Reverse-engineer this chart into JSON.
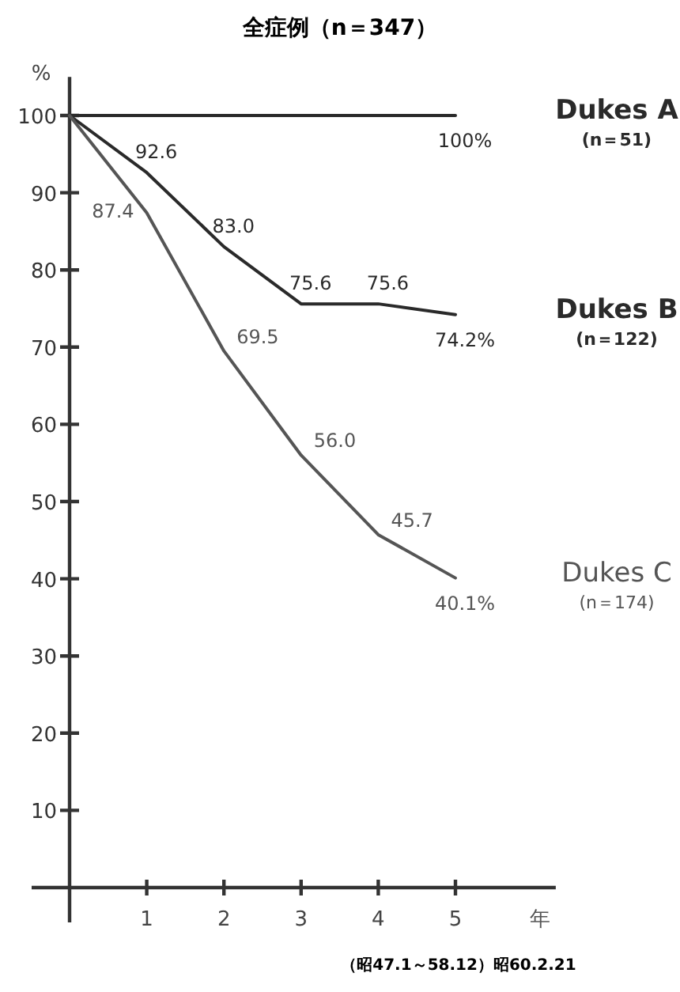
{
  "chart_data": {
    "type": "line",
    "title": "全症例（n＝347）",
    "xlabel": "年",
    "ylabel": "%",
    "x": [
      0,
      1,
      2,
      3,
      4,
      5
    ],
    "series": [
      {
        "name": "Dukes A",
        "color": "#2a2a2a",
        "values": [
          100,
          100,
          100,
          100,
          100,
          100
        ],
        "value_labels": [
          null,
          null,
          null,
          null,
          null,
          "100%"
        ]
      },
      {
        "name": "Dukes B",
        "color": "#2a2a2a",
        "values": [
          100,
          92.6,
          83.0,
          75.6,
          75.6,
          74.2
        ],
        "value_labels": [
          null,
          "92.6",
          "83.0",
          "75.6",
          "75.6",
          "74.2%"
        ]
      },
      {
        "name": "Dukes C",
        "color": "#555555",
        "values": [
          100,
          87.4,
          69.5,
          56.0,
          45.7,
          40.1
        ],
        "value_labels": [
          null,
          "87.4",
          "69.5",
          "56.0",
          "45.7",
          "40.1%"
        ]
      }
    ],
    "annotations": [
      "(n＝51)",
      "(n＝122)",
      "(n＝174)",
      "（昭47.1～58.12）昭60.2.21"
    ],
    "xlim": [
      0,
      6.3
    ],
    "ylim": [
      0,
      105
    ],
    "xticks": [
      1,
      2,
      3,
      4,
      5
    ],
    "yticks": [
      10,
      20,
      30,
      40,
      50,
      60,
      70,
      80,
      90,
      100
    ],
    "grid": false,
    "marker": "none",
    "line_style": "solid"
  }
}
